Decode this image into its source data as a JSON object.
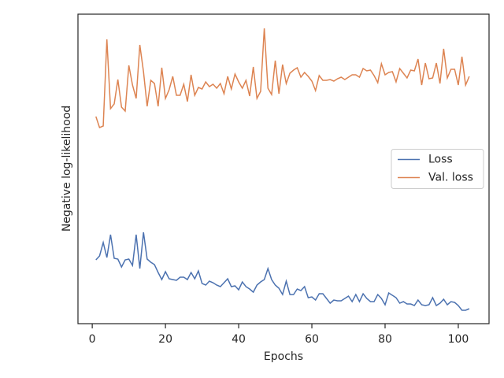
{
  "chart_data": {
    "type": "line",
    "xlabel": "Epochs",
    "ylabel": "Negative log-likelihood",
    "x": [
      1,
      2,
      3,
      4,
      5,
      6,
      7,
      8,
      9,
      10,
      11,
      12,
      13,
      14,
      15,
      16,
      17,
      18,
      19,
      20,
      21,
      22,
      23,
      24,
      25,
      26,
      27,
      28,
      29,
      30,
      31,
      32,
      33,
      34,
      35,
      36,
      37,
      38,
      39,
      40,
      41,
      42,
      43,
      44,
      45,
      46,
      47,
      48,
      49,
      50,
      51,
      52,
      53,
      54,
      55,
      56,
      57,
      58,
      59,
      60,
      61,
      62,
      63,
      64,
      65,
      66,
      67,
      68,
      69,
      70,
      71,
      72,
      73,
      74,
      75,
      76,
      77,
      78,
      79,
      80,
      81,
      82,
      83,
      84,
      85,
      86,
      87,
      88,
      89,
      90,
      91,
      92,
      93,
      94,
      95,
      96,
      97,
      98,
      99,
      100,
      101,
      102,
      103
    ],
    "series": [
      {
        "name": "Loss",
        "color": "#4c72b0",
        "values": [
          81,
          86,
          103,
          84,
          113,
          83,
          82,
          72,
          81,
          82,
          74,
          113,
          70,
          116,
          82,
          78,
          75,
          65,
          56,
          66,
          57,
          56,
          55,
          59,
          59,
          56,
          65,
          57,
          67,
          51,
          49,
          54,
          52,
          49,
          47,
          52,
          57,
          47,
          48,
          43,
          53,
          47,
          44,
          40,
          49,
          53,
          56,
          70,
          56,
          49,
          45,
          37,
          54,
          37,
          37,
          44,
          42,
          47,
          33,
          34,
          30,
          38,
          38,
          32,
          26,
          30,
          29,
          29,
          32,
          35,
          28,
          37,
          28,
          38,
          32,
          28,
          28,
          37,
          32,
          24,
          39,
          36,
          33,
          26,
          28,
          25,
          25,
          23,
          30,
          24,
          23,
          24,
          33,
          23,
          26,
          31,
          24,
          28,
          27,
          23,
          17,
          17,
          19
        ]
      },
      {
        "name": "Val. loss",
        "color": "#dd8452",
        "values": [
          263,
          249,
          251,
          361,
          273,
          279,
          310,
          275,
          270,
          328,
          303,
          286,
          354,
          320,
          276,
          309,
          305,
          276,
          325,
          286,
          297,
          314,
          290,
          290,
          304,
          282,
          316,
          290,
          300,
          298,
          307,
          301,
          304,
          299,
          305,
          292,
          314,
          298,
          317,
          307,
          299,
          309,
          289,
          326,
          286,
          295,
          375,
          299,
          291,
          334,
          292,
          329,
          305,
          318,
          322,
          325,
          313,
          319,
          314,
          308,
          296,
          315,
          309,
          309,
          310,
          308,
          311,
          313,
          310,
          313,
          316,
          316,
          313,
          324,
          321,
          322,
          315,
          306,
          330,
          316,
          319,
          320,
          307,
          324,
          318,
          312,
          322,
          321,
          336,
          303,
          331,
          311,
          312,
          331,
          305,
          349,
          312,
          323,
          323,
          303,
          339,
          303,
          314
        ]
      }
    ],
    "xlim": [
      -3.9,
      108.4
    ],
    "xticks": [
      0,
      20,
      40,
      60,
      80,
      100
    ],
    "ylim": [
      0,
      393
    ],
    "legend": "center right"
  }
}
